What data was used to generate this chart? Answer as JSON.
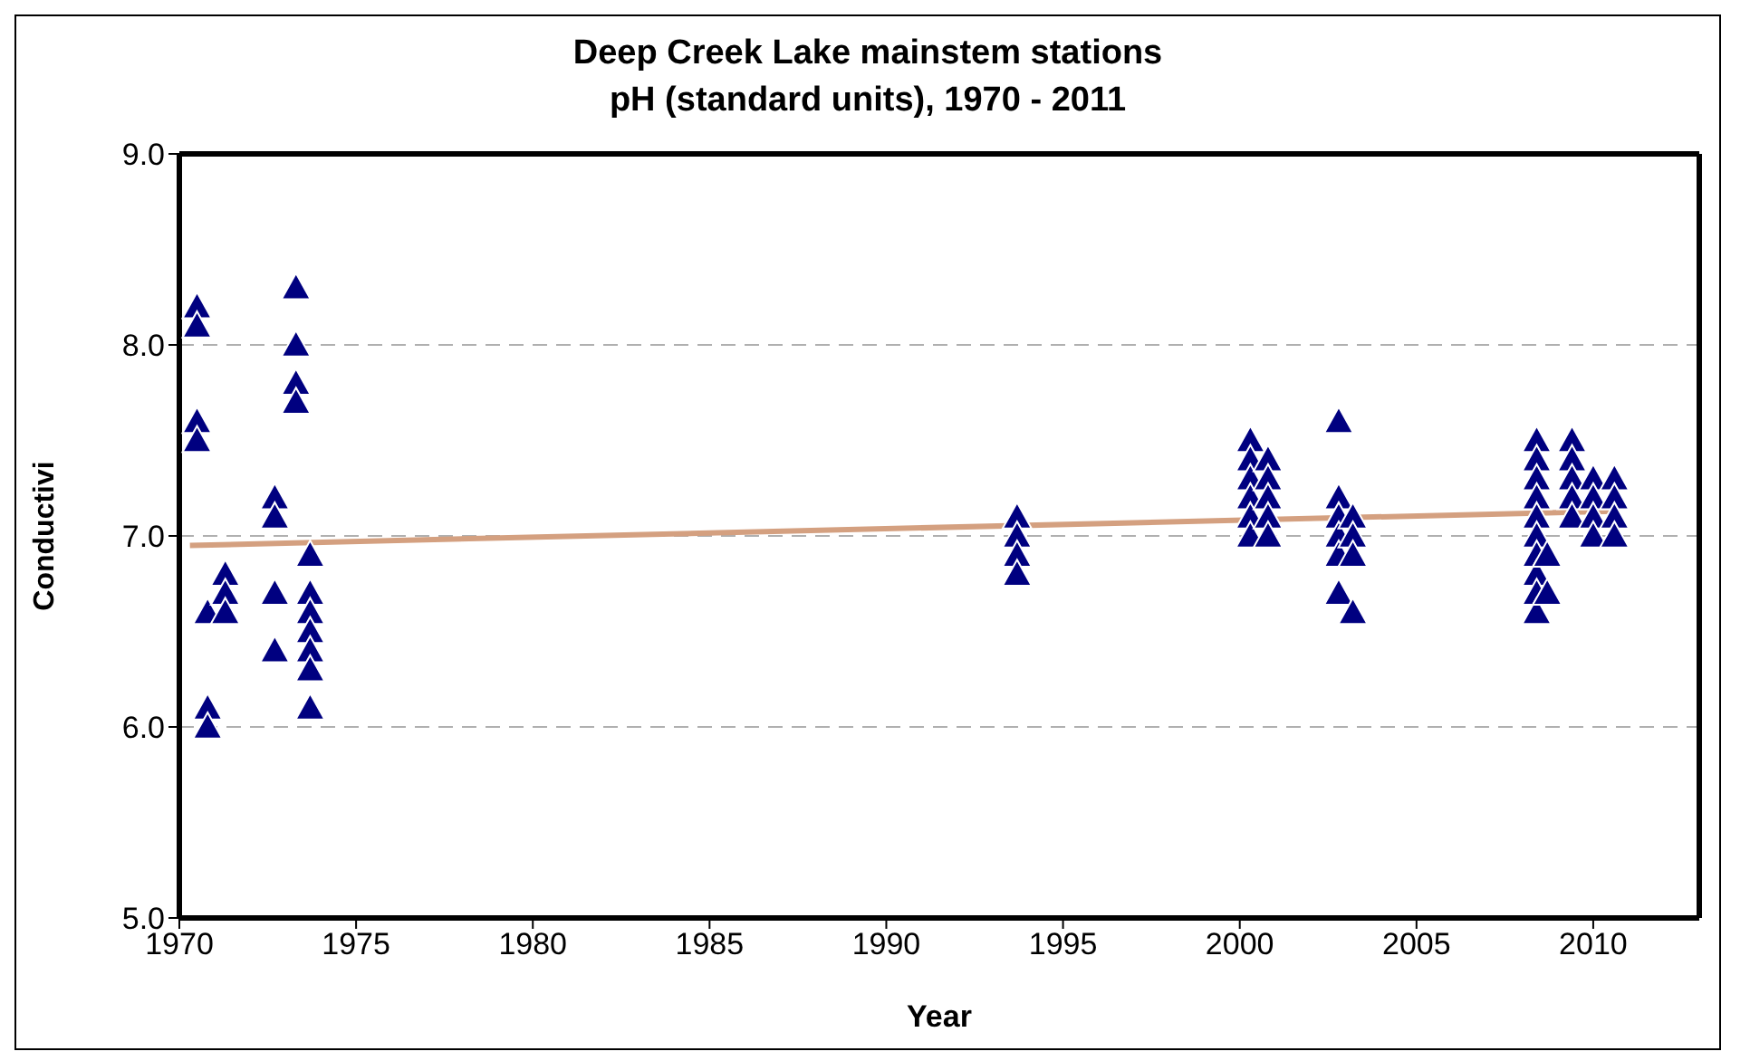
{
  "chart_data": {
    "type": "scatter",
    "title": "Deep Creek Lake mainstem stations",
    "subtitle": "pH (standard units), 1970 - 2011",
    "xlabel": "Year",
    "ylabel": "Conductivi",
    "xlim": [
      1970,
      2013
    ],
    "xticks": [
      1970,
      1975,
      1980,
      1985,
      1990,
      1995,
      2000,
      2005,
      2010
    ],
    "ylim": [
      5.0,
      9.0
    ],
    "yticks": [
      {
        "value": 5,
        "label": "5.0"
      },
      {
        "value": 6,
        "label": "6.0"
      },
      {
        "value": 7,
        "label": "7.0"
      },
      {
        "value": 8,
        "label": "8.0"
      },
      {
        "value": 9,
        "label": "9.0"
      }
    ],
    "grid": "y",
    "series": [
      {
        "marker": "triangle",
        "color": "#000080",
        "x": [
          1970.5,
          1970.5,
          1970.5,
          1970.5,
          1970.8,
          1970.8,
          1970.8,
          1971.3,
          1971.3,
          1971.3,
          1972.7,
          1972.7,
          1972.7,
          1972.7,
          1973.3,
          1973.3,
          1973.3,
          1973.3,
          1973.7,
          1973.7,
          1973.7,
          1973.7,
          1973.7,
          1973.7,
          1973.7,
          1993.7,
          1993.7,
          1993.7,
          1993.7,
          2000.3,
          2000.3,
          2000.3,
          2000.3,
          2000.3,
          2000.3,
          2000.8,
          2000.8,
          2000.8,
          2000.8,
          2000.8,
          2002.8,
          2002.8,
          2002.8,
          2002.8,
          2002.8,
          2002.8,
          2003.2,
          2003.2,
          2003.2,
          2003.2,
          2008.4,
          2008.4,
          2008.4,
          2008.4,
          2008.4,
          2008.4,
          2008.4,
          2008.4,
          2008.4,
          2008.4,
          2008.7,
          2008.7,
          2009.4,
          2009.4,
          2009.4,
          2009.4,
          2009.4,
          2010.0,
          2010.0,
          2010.0,
          2010.0,
          2010.6,
          2010.6,
          2010.6,
          2010.6
        ],
        "values": [
          8.2,
          8.1,
          7.6,
          7.5,
          6.6,
          6.1,
          6.0,
          6.8,
          6.7,
          6.6,
          7.2,
          7.1,
          6.7,
          6.4,
          8.3,
          8.0,
          7.8,
          7.7,
          6.9,
          6.7,
          6.6,
          6.5,
          6.4,
          6.3,
          6.1,
          7.1,
          7.0,
          6.9,
          6.8,
          7.5,
          7.4,
          7.3,
          7.2,
          7.1,
          7.0,
          7.4,
          7.3,
          7.2,
          7.1,
          7.0,
          7.6,
          7.2,
          7.1,
          7.0,
          6.9,
          6.7,
          7.1,
          7.0,
          6.9,
          6.6,
          7.5,
          7.4,
          7.3,
          7.2,
          7.1,
          7.0,
          6.9,
          6.8,
          6.7,
          6.6,
          6.9,
          6.7,
          7.5,
          7.4,
          7.3,
          7.2,
          7.1,
          7.3,
          7.2,
          7.1,
          7.0,
          7.3,
          7.2,
          7.1,
          7.0
        ]
      },
      {
        "type": "line",
        "marker": "none",
        "color": "#d4a080",
        "x": [
          1970.3,
          2010.7
        ],
        "values": [
          6.95,
          7.13
        ]
      }
    ]
  }
}
